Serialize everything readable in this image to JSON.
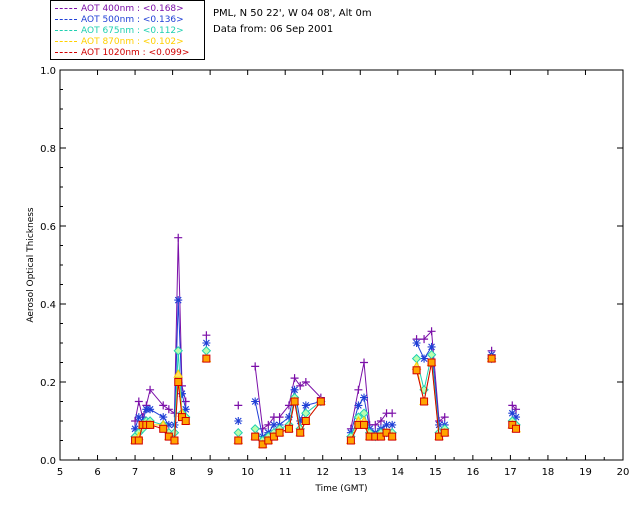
{
  "info": {
    "site_line": "PML, N 50 22', W 04 08', Alt 0m",
    "date_line": "Data from: 06 Sep 2001"
  },
  "legend": [
    {
      "label": "AOT  400nm : <0.168>",
      "color": "#7b0fa8"
    },
    {
      "label": "AOT  500nm : <0.136>",
      "color": "#1f3fd6"
    },
    {
      "label": "AOT  675nm : <0.112>",
      "color": "#20d0b0"
    },
    {
      "label": "AOT  870nm : <0.102>",
      "color": "#ffd000"
    },
    {
      "label": "AOT 1020nm : <0.099>",
      "color": "#d00000"
    }
  ],
  "chart_data": {
    "type": "scatter",
    "title": "",
    "xlabel": "Time (GMT)",
    "ylabel": "Aerosol Optical Thickness",
    "xlim": [
      5,
      20
    ],
    "ylim": [
      0,
      1
    ],
    "xticks": [
      "5",
      "6",
      "7",
      "8",
      "9",
      "10",
      "11",
      "12",
      "13",
      "14",
      "15",
      "16",
      "17",
      "18",
      "19",
      "20"
    ],
    "yticks": [
      "0.0",
      "0.2",
      "0.4",
      "0.6",
      "0.8",
      "1.0"
    ],
    "x": [
      7.0,
      7.1,
      7.2,
      7.3,
      7.4,
      7.75,
      7.9,
      8.05,
      8.15,
      8.25,
      8.35,
      8.9,
      9.75,
      10.2,
      10.4,
      10.55,
      10.7,
      10.85,
      11.1,
      11.25,
      11.4,
      11.55,
      11.95,
      12.75,
      12.95,
      13.1,
      13.25,
      13.4,
      13.55,
      13.7,
      13.85,
      14.5,
      14.7,
      14.9,
      15.1,
      15.25,
      16.5,
      17.05,
      17.15
    ],
    "series": [
      {
        "name": "AOT 400nm",
        "marker": "plus",
        "color": "#7b0fa8",
        "values": [
          0.1,
          0.15,
          0.11,
          0.14,
          0.18,
          0.14,
          0.13,
          0.12,
          0.57,
          0.19,
          0.15,
          0.32,
          0.14,
          0.24,
          0.08,
          0.09,
          0.11,
          0.11,
          0.14,
          0.21,
          0.19,
          0.2,
          0.16,
          0.08,
          0.18,
          0.25,
          0.09,
          0.09,
          0.1,
          0.12,
          0.12,
          0.31,
          0.31,
          0.33,
          0.1,
          0.11,
          0.28,
          0.14,
          0.13
        ]
      },
      {
        "name": "AOT 500nm",
        "marker": "asterisk",
        "color": "#1f3fd6",
        "values": [
          0.08,
          0.11,
          0.1,
          0.13,
          0.13,
          0.11,
          0.09,
          0.09,
          0.41,
          0.17,
          0.13,
          0.3,
          0.1,
          0.15,
          0.06,
          0.07,
          0.09,
          0.09,
          0.11,
          0.18,
          0.1,
          0.14,
          0.15,
          0.07,
          0.14,
          0.16,
          0.08,
          0.07,
          0.08,
          0.09,
          0.09,
          0.3,
          0.26,
          0.29,
          0.09,
          0.09,
          0.27,
          0.12,
          0.11
        ]
      },
      {
        "name": "AOT 675nm",
        "marker": "diamond",
        "color": "#20d0b0",
        "values": [
          0.06,
          0.07,
          0.08,
          0.1,
          0.1,
          0.09,
          0.07,
          0.07,
          0.28,
          0.12,
          0.11,
          0.28,
          0.07,
          0.08,
          0.05,
          0.06,
          0.07,
          0.08,
          0.09,
          0.16,
          0.08,
          0.12,
          0.15,
          0.06,
          0.11,
          0.12,
          0.07,
          0.06,
          0.07,
          0.07,
          0.07,
          0.26,
          0.18,
          0.27,
          0.07,
          0.08,
          0.26,
          0.1,
          0.09
        ]
      },
      {
        "name": "AOT 870nm",
        "marker": "triangle",
        "color": "#ffd000",
        "values": [
          0.05,
          0.06,
          0.09,
          0.09,
          0.09,
          0.09,
          0.06,
          0.05,
          0.22,
          0.12,
          0.1,
          0.26,
          0.05,
          0.06,
          0.04,
          0.05,
          0.06,
          0.07,
          0.08,
          0.15,
          0.07,
          0.1,
          0.15,
          0.05,
          0.1,
          0.1,
          0.06,
          0.06,
          0.06,
          0.07,
          0.06,
          0.24,
          0.15,
          0.25,
          0.06,
          0.07,
          0.26,
          0.09,
          0.08
        ]
      },
      {
        "name": "AOT 1020nm",
        "marker": "square",
        "color": "#d00000",
        "values": [
          0.05,
          0.05,
          0.09,
          0.09,
          0.09,
          0.08,
          0.06,
          0.05,
          0.2,
          0.11,
          0.1,
          0.26,
          0.05,
          0.06,
          0.04,
          0.05,
          0.06,
          0.07,
          0.08,
          0.15,
          0.07,
          0.1,
          0.15,
          0.05,
          0.09,
          0.09,
          0.06,
          0.06,
          0.06,
          0.07,
          0.06,
          0.23,
          0.15,
          0.25,
          0.06,
          0.07,
          0.26,
          0.09,
          0.08
        ]
      }
    ]
  }
}
